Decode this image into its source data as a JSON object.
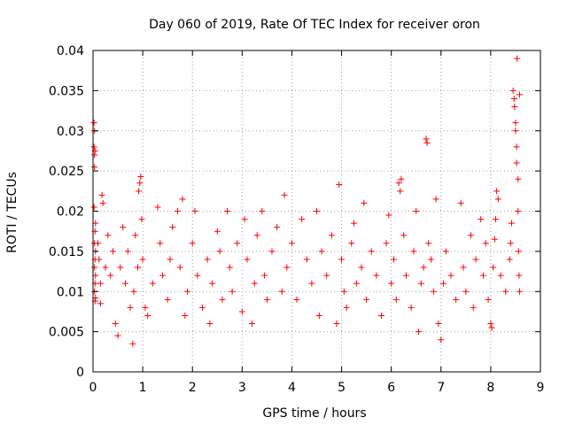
{
  "chart_data": {
    "type": "scatter",
    "title": "Day 060 of 2019, Rate Of TEC Index for receiver oron",
    "xlabel": "GPS time / hours",
    "ylabel": "ROTI / TECUs",
    "xlim": [
      0,
      9
    ],
    "ylim": [
      0,
      0.04
    ],
    "xticks": [
      0,
      1,
      2,
      3,
      4,
      5,
      6,
      7,
      8,
      9
    ],
    "xtick_labels": [
      "0",
      "1",
      "2",
      "3",
      "4",
      "5",
      "6",
      "7",
      "8",
      "9"
    ],
    "yticks": [
      0,
      0.005,
      0.01,
      0.015,
      0.02,
      0.025,
      0.03,
      0.035,
      0.04
    ],
    "ytick_labels": [
      "0",
      "0.005",
      "0.01",
      "0.015",
      "0.02",
      "0.025",
      "0.03",
      "0.035",
      "0.04"
    ],
    "grid": true,
    "marker": "+",
    "marker_color": "#ff0000",
    "series": [
      {
        "name": "ROTI",
        "points": [
          [
            0.02,
            0.031
          ],
          [
            0.03,
            0.03
          ],
          [
            0.02,
            0.028
          ],
          [
            0.04,
            0.0275
          ],
          [
            0.03,
            0.027
          ],
          [
            0.03,
            0.0255
          ],
          [
            0.02,
            0.0205
          ],
          [
            0.05,
            0.0185
          ],
          [
            0.04,
            0.0175
          ],
          [
            0.03,
            0.016
          ],
          [
            0.05,
            0.015
          ],
          [
            0.04,
            0.014
          ],
          [
            0.03,
            0.013
          ],
          [
            0.05,
            0.012
          ],
          [
            0.04,
            0.011
          ],
          [
            0.03,
            0.01
          ],
          [
            0.05,
            0.0092
          ],
          [
            0.04,
            0.0088
          ],
          [
            0.1,
            0.016
          ],
          [
            0.12,
            0.014
          ],
          [
            0.15,
            0.011
          ],
          [
            0.18,
            0.022
          ],
          [
            0.2,
            0.021
          ],
          [
            0.15,
            0.0085
          ],
          [
            0.25,
            0.013
          ],
          [
            0.3,
            0.017
          ],
          [
            0.35,
            0.012
          ],
          [
            0.4,
            0.015
          ],
          [
            0.45,
            0.006
          ],
          [
            0.5,
            0.0045
          ],
          [
            0.55,
            0.013
          ],
          [
            0.6,
            0.018
          ],
          [
            0.65,
            0.011
          ],
          [
            0.7,
            0.015
          ],
          [
            0.75,
            0.008
          ],
          [
            0.8,
            0.0035
          ],
          [
            0.82,
            0.01
          ],
          [
            0.85,
            0.017
          ],
          [
            0.9,
            0.013
          ],
          [
            0.92,
            0.0225
          ],
          [
            0.94,
            0.0235
          ],
          [
            0.96,
            0.0243
          ],
          [
            0.98,
            0.019
          ],
          [
            1.0,
            0.014
          ],
          [
            1.05,
            0.008
          ],
          [
            1.1,
            0.007
          ],
          [
            1.2,
            0.011
          ],
          [
            1.3,
            0.0205
          ],
          [
            1.35,
            0.016
          ],
          [
            1.4,
            0.012
          ],
          [
            1.5,
            0.009
          ],
          [
            1.55,
            0.014
          ],
          [
            1.6,
            0.018
          ],
          [
            1.7,
            0.02
          ],
          [
            1.75,
            0.013
          ],
          [
            1.8,
            0.0215
          ],
          [
            1.85,
            0.007
          ],
          [
            1.9,
            0.01
          ],
          [
            2.0,
            0.016
          ],
          [
            2.05,
            0.02
          ],
          [
            2.1,
            0.012
          ],
          [
            2.2,
            0.008
          ],
          [
            2.3,
            0.014
          ],
          [
            2.35,
            0.006
          ],
          [
            2.4,
            0.011
          ],
          [
            2.5,
            0.0175
          ],
          [
            2.55,
            0.015
          ],
          [
            2.6,
            0.009
          ],
          [
            2.7,
            0.02
          ],
          [
            2.75,
            0.013
          ],
          [
            2.8,
            0.01
          ],
          [
            2.9,
            0.016
          ],
          [
            3.0,
            0.0075
          ],
          [
            3.05,
            0.019
          ],
          [
            3.1,
            0.014
          ],
          [
            3.2,
            0.006
          ],
          [
            3.25,
            0.011
          ],
          [
            3.3,
            0.017
          ],
          [
            3.4,
            0.02
          ],
          [
            3.45,
            0.012
          ],
          [
            3.5,
            0.009
          ],
          [
            3.6,
            0.015
          ],
          [
            3.7,
            0.018
          ],
          [
            3.8,
            0.01
          ],
          [
            3.85,
            0.022
          ],
          [
            3.9,
            0.013
          ],
          [
            4.0,
            0.016
          ],
          [
            4.1,
            0.009
          ],
          [
            4.2,
            0.019
          ],
          [
            4.3,
            0.014
          ],
          [
            4.4,
            0.011
          ],
          [
            4.5,
            0.02
          ],
          [
            4.55,
            0.007
          ],
          [
            4.6,
            0.015
          ],
          [
            4.7,
            0.012
          ],
          [
            4.8,
            0.017
          ],
          [
            4.9,
            0.006
          ],
          [
            4.95,
            0.0233
          ],
          [
            5.0,
            0.014
          ],
          [
            5.05,
            0.01
          ],
          [
            5.1,
            0.008
          ],
          [
            5.2,
            0.016
          ],
          [
            5.25,
            0.0185
          ],
          [
            5.3,
            0.011
          ],
          [
            5.4,
            0.013
          ],
          [
            5.45,
            0.021
          ],
          [
            5.5,
            0.009
          ],
          [
            5.6,
            0.015
          ],
          [
            5.7,
            0.012
          ],
          [
            5.8,
            0.007
          ],
          [
            5.9,
            0.016
          ],
          [
            5.95,
            0.0195
          ],
          [
            6.0,
            0.011
          ],
          [
            6.05,
            0.014
          ],
          [
            6.1,
            0.009
          ],
          [
            6.15,
            0.0235
          ],
          [
            6.18,
            0.0225
          ],
          [
            6.2,
            0.024
          ],
          [
            6.25,
            0.017
          ],
          [
            6.3,
            0.012
          ],
          [
            6.4,
            0.008
          ],
          [
            6.45,
            0.015
          ],
          [
            6.5,
            0.02
          ],
          [
            6.55,
            0.005
          ],
          [
            6.6,
            0.011
          ],
          [
            6.65,
            0.013
          ],
          [
            6.7,
            0.029
          ],
          [
            6.72,
            0.0285
          ],
          [
            6.75,
            0.016
          ],
          [
            6.8,
            0.014
          ],
          [
            6.85,
            0.01
          ],
          [
            6.9,
            0.0215
          ],
          [
            6.95,
            0.006
          ],
          [
            7.0,
            0.004
          ],
          [
            7.05,
            0.011
          ],
          [
            7.1,
            0.015
          ],
          [
            7.2,
            0.012
          ],
          [
            7.3,
            0.009
          ],
          [
            7.4,
            0.021
          ],
          [
            7.45,
            0.013
          ],
          [
            7.5,
            0.01
          ],
          [
            7.6,
            0.017
          ],
          [
            7.65,
            0.008
          ],
          [
            7.7,
            0.014
          ],
          [
            7.8,
            0.019
          ],
          [
            7.85,
            0.012
          ],
          [
            7.9,
            0.016
          ],
          [
            7.95,
            0.009
          ],
          [
            8.0,
            0.006
          ],
          [
            8.02,
            0.0055
          ],
          [
            8.05,
            0.013
          ],
          [
            8.08,
            0.0165
          ],
          [
            8.1,
            0.019
          ],
          [
            8.12,
            0.0225
          ],
          [
            8.15,
            0.0215
          ],
          [
            8.2,
            0.012
          ],
          [
            8.3,
            0.01
          ],
          [
            8.38,
            0.014
          ],
          [
            8.4,
            0.016
          ],
          [
            8.42,
            0.0185
          ],
          [
            8.45,
            0.035
          ],
          [
            8.47,
            0.034
          ],
          [
            8.48,
            0.033
          ],
          [
            8.5,
            0.031
          ],
          [
            8.5,
            0.03
          ],
          [
            8.52,
            0.028
          ],
          [
            8.52,
            0.026
          ],
          [
            8.53,
            0.039
          ],
          [
            8.55,
            0.024
          ],
          [
            8.55,
            0.02
          ],
          [
            8.56,
            0.015
          ],
          [
            8.57,
            0.012
          ],
          [
            8.58,
            0.01
          ],
          [
            8.58,
            0.0345
          ]
        ]
      }
    ]
  }
}
